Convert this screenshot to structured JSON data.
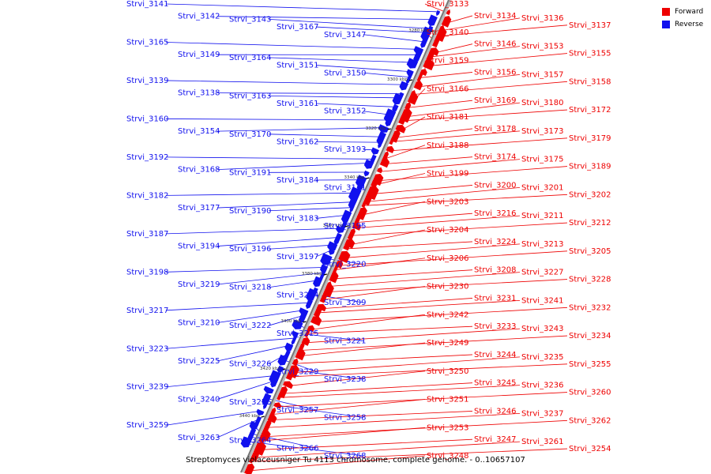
{
  "colors": {
    "forward": "#ee0000",
    "reverse": "#1111ee",
    "backbone": "#777777"
  },
  "legend": {
    "forward": "Forward",
    "reverse": "Reverse"
  },
  "caption": "Streptomyces violaceusniger Tu 4113 chromosome, complete genome. - 0..10657107",
  "scale_labels": [
    "3280 kbp",
    "3300 kbp",
    "3320 kbp",
    "3340 kbp",
    "3360 kbp",
    "3380 kbp",
    "3400 kbp",
    "3420 kbp",
    "3440 kbp"
  ],
  "forward_genes": [
    "Strvi_3133",
    "Strvi_3134",
    "Strvi_3136",
    "Strvi_3137",
    "Strvi_3140",
    "Strvi_3146",
    "Strvi_3153",
    "Strvi_3155",
    "Strvi_3159",
    "Strvi_3156",
    "Strvi_3157",
    "Strvi_3158",
    "Strvi_3166",
    "Strvi_3169",
    "Strvi_3180",
    "Strvi_3172",
    "Strvi_3181",
    "Strvi_3178",
    "Strvi_3173",
    "Strvi_3179",
    "Strvi_3188",
    "Strvi_3174",
    "Strvi_3175",
    "Strvi_3189",
    "Strvi_3199",
    "Strvi_3200",
    "Strvi_3201",
    "Strvi_3202",
    "Strvi_3203",
    "Strvi_3216",
    "Strvi_3211",
    "Strvi_3212",
    "Strvi_3204",
    "Strvi_3224",
    "Strvi_3213",
    "Strvi_3205",
    "Strvi_3206",
    "Strvi_3208",
    "Strvi_3227",
    "Strvi_3228",
    "Strvi_3230",
    "Strvi_3231",
    "Strvi_3241",
    "Strvi_3232",
    "Strvi_3242",
    "Strvi_3233",
    "Strvi_3243",
    "Strvi_3234",
    "Strvi_3249",
    "Strvi_3244",
    "Strvi_3235",
    "Strvi_3255",
    "Strvi_3250",
    "Strvi_3245",
    "Strvi_3236",
    "Strvi_3260",
    "Strvi_3251",
    "Strvi_3246",
    "Strvi_3237",
    "Strvi_3262",
    "Strvi_3253",
    "Strvi_3247",
    "Strvi_3261",
    "Strvi_3254",
    "Strvi_3248"
  ],
  "reverse_genes": [
    "Strvi_3141",
    "Strvi_3142",
    "Strvi_3143",
    "Strvi_3167",
    "Strvi_3147",
    "Strvi_3165",
    "Strvi_3149",
    "Strvi_3164",
    "Strvi_3151",
    "Strvi_3150",
    "Strvi_3139",
    "Strvi_3138",
    "Strvi_3163",
    "Strvi_3161",
    "Strvi_3152",
    "Strvi_3160",
    "Strvi_3154",
    "Strvi_3170",
    "Strvi_3162",
    "Strvi_3193",
    "Strvi_3192",
    "Strvi_3168",
    "Strvi_3191",
    "Strvi_3184",
    "Strvi_3171",
    "Strvi_3182",
    "Strvi_3177",
    "Strvi_3190",
    "Strvi_3183",
    "Strvi_3195",
    "Strvi_3187",
    "Strvi_3194",
    "Strvi_3196",
    "Strvi_3197",
    "Strvi_3220",
    "Strvi_3198",
    "Strvi_3219",
    "Strvi_3218",
    "Strvi_3214",
    "Strvi_3209",
    "Strvi_3217",
    "Strvi_3210",
    "Strvi_3222",
    "Strvi_3215",
    "Strvi_3221",
    "Strvi_3223",
    "Strvi_3225",
    "Strvi_3226",
    "Strvi_3229",
    "Strvi_3238",
    "Strvi_3239",
    "Strvi_3240",
    "Strvi_3256",
    "Strvi_3257",
    "Strvi_3258",
    "Strvi_3259",
    "Strvi_3263",
    "Strvi_3264",
    "Strvi_3266",
    "Strvi_3268"
  ]
}
